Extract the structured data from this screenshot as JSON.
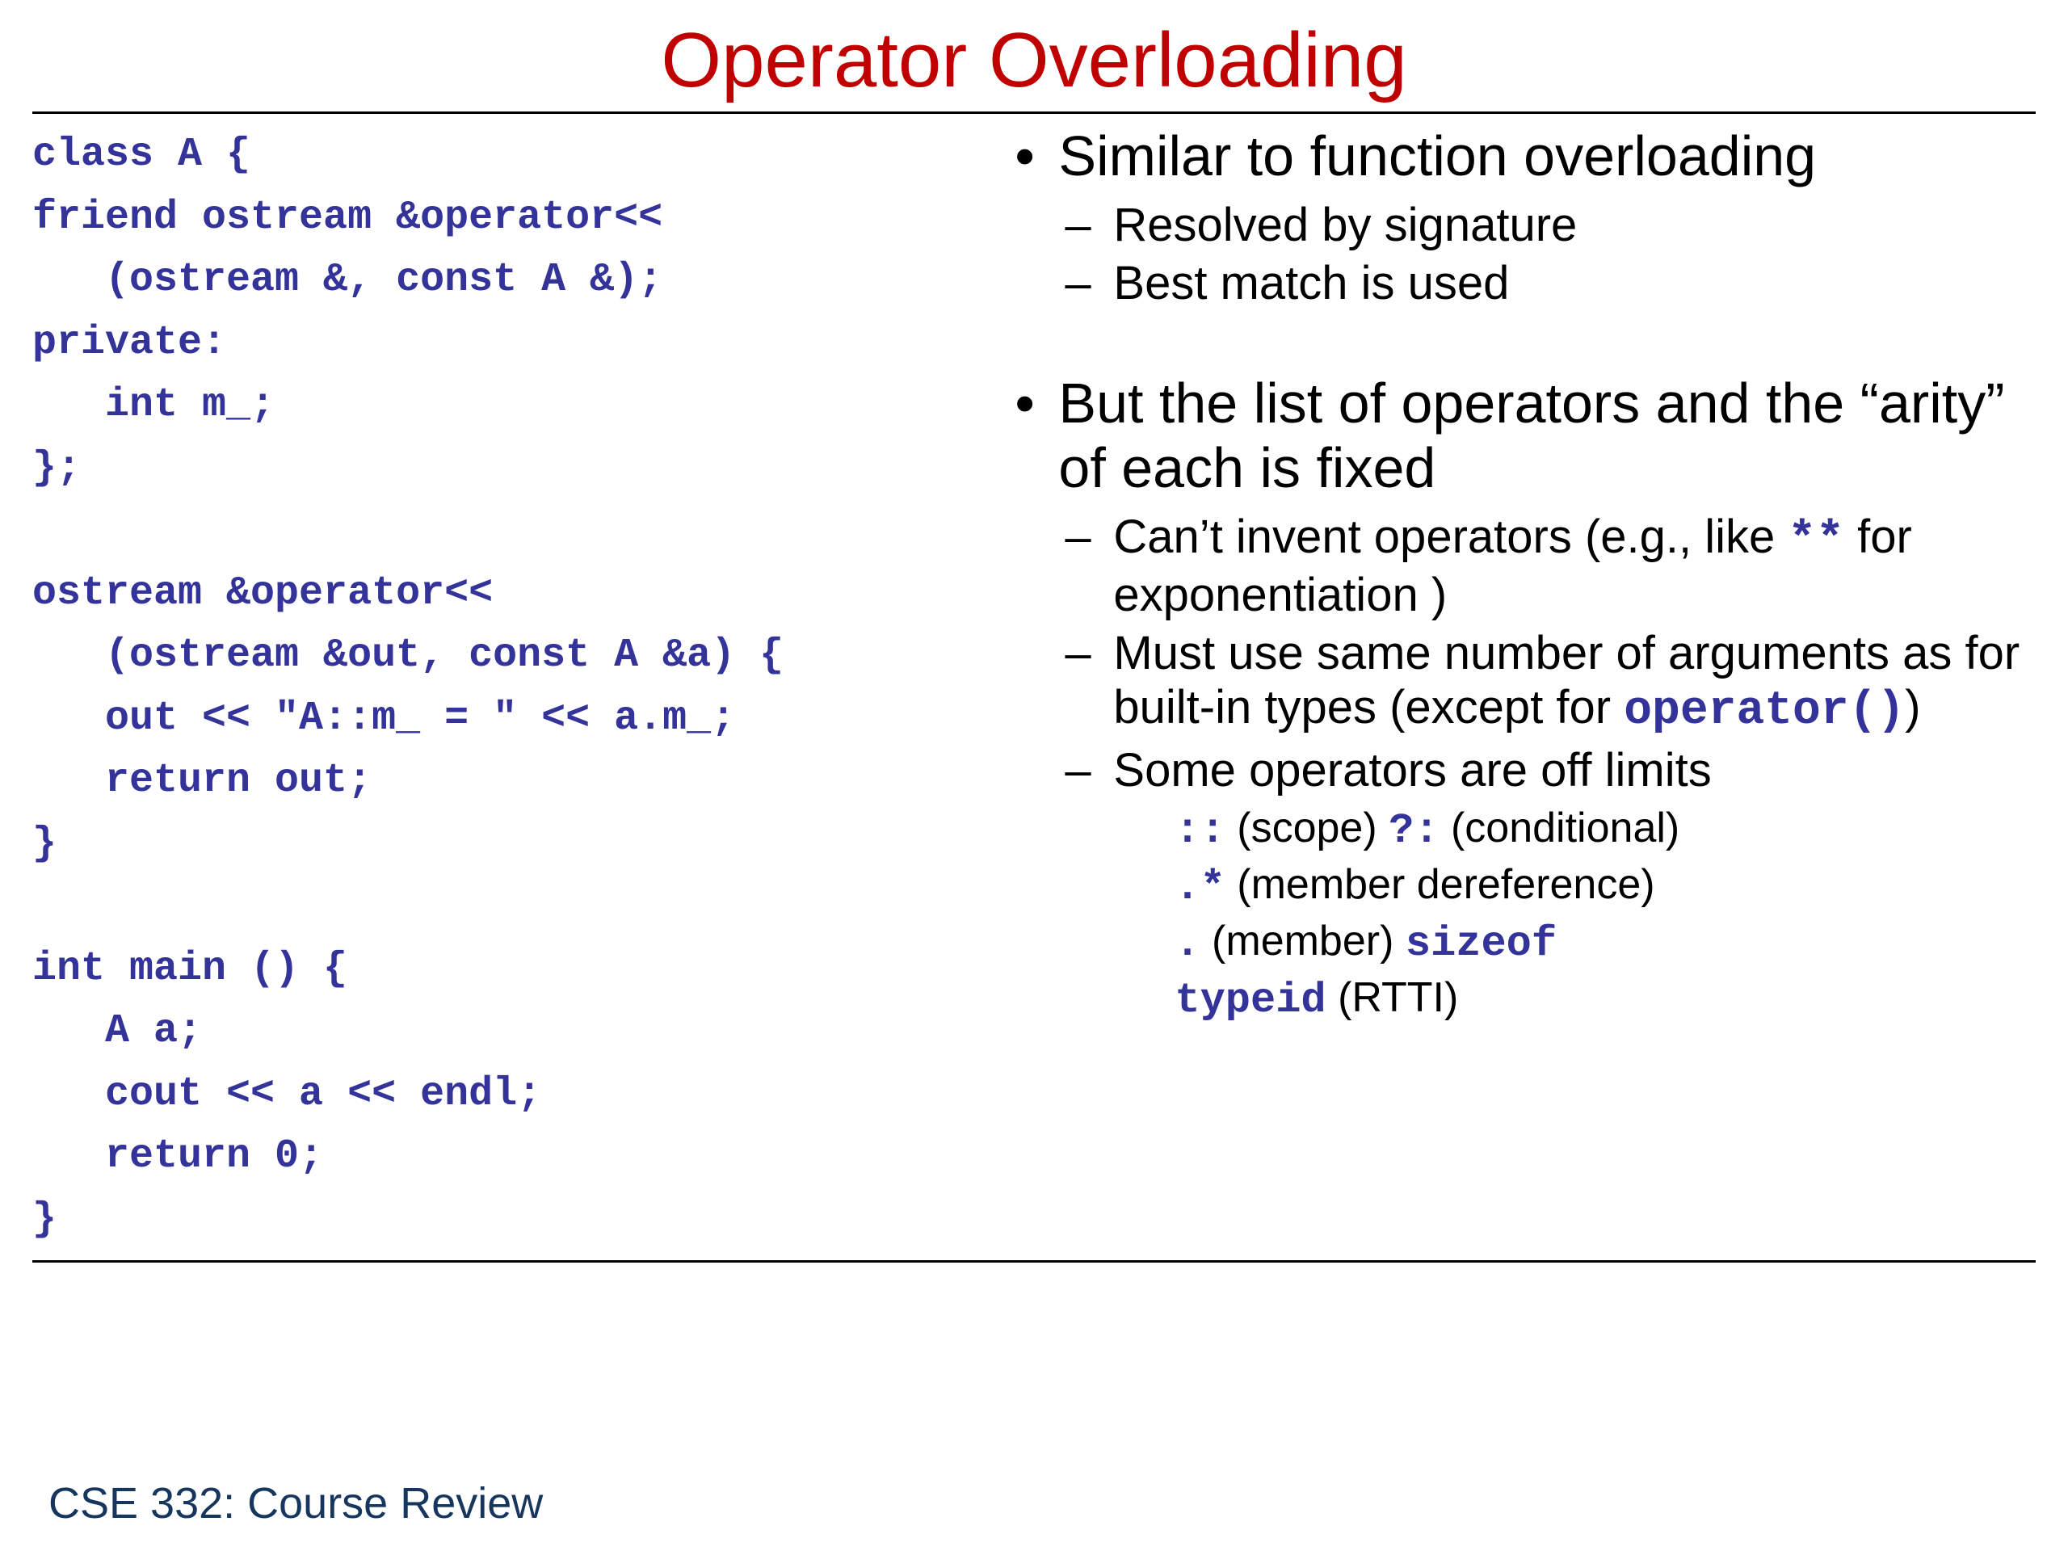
{
  "colors": {
    "title": "#c00000",
    "code": "#333399",
    "text": "#000000",
    "footer": "#17365d",
    "background": "#ffffff"
  },
  "title": "Operator Overloading",
  "code_lines": [
    "class A {",
    "friend ostream &operator<<",
    "   (ostream &, const A &);",
    "private:",
    "   int m_;",
    "};",
    "",
    "ostream &operator<<",
    "   (ostream &out, const A &a) {",
    "   out << \"A::m_ = \" << a.m_;",
    "   return out;",
    "}",
    "",
    "int main () {",
    "   A a;",
    "   cout << a << endl;",
    "   return 0;",
    "}"
  ],
  "bullets": {
    "b1": {
      "text": "Similar to function overloading",
      "sub": {
        "s1": "Resolved by signature",
        "s2": "Best match is used"
      }
    },
    "b2": {
      "pre": "But the list of operators and the ",
      "lq": "“",
      "word": "arity",
      "rq": "”",
      "post": " of each is fixed",
      "sub": {
        "s1": {
          "pre": "Can",
          "apos": "’",
          "mid": "t invent operators (e.g., like ",
          "code": "**",
          "post": " for exponentiation )"
        },
        "s2": {
          "pre": "Must use same number of arguments as for built-in types (except for ",
          "code": "operator()",
          "post": ")"
        },
        "s3": "Some operators are off limits"
      },
      "offlimits": {
        "o1": {
          "c1": "::",
          "t1": " (scope) ",
          "c2": "?:",
          "t2": " (conditional)"
        },
        "o2": {
          "c1": ".*",
          "t1": " (member dereference)"
        },
        "o3": {
          "c1": ".",
          "t1": " (member) ",
          "c2": "sizeof"
        },
        "o4": {
          "c1": "typeid",
          "t1": " (RTTI)"
        }
      }
    }
  },
  "footer": "CSE 332: Course Review"
}
